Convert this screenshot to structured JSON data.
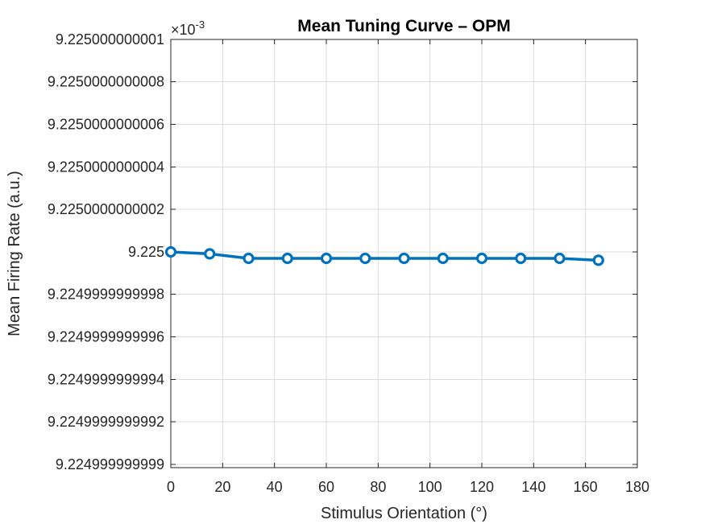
{
  "chart_data": {
    "type": "line",
    "title": "Mean Tuning Curve – OPM",
    "xlabel": "Stimulus Orientation (°)",
    "ylabel": "Mean Firing Rate (a.u.)",
    "y_exponent_base": "×10",
    "y_exponent_power": "-3",
    "xlim": [
      0,
      180
    ],
    "ylim": [
      9.2249999999989,
      9.225000000001
    ],
    "grid": true,
    "x_ticks": [
      {
        "value": 0,
        "label": "0"
      },
      {
        "value": 20,
        "label": "20"
      },
      {
        "value": 40,
        "label": "40"
      },
      {
        "value": 60,
        "label": "60"
      },
      {
        "value": 80,
        "label": "80"
      },
      {
        "value": 100,
        "label": "100"
      },
      {
        "value": 120,
        "label": "120"
      },
      {
        "value": 140,
        "label": "140"
      },
      {
        "value": 160,
        "label": "160"
      },
      {
        "value": 180,
        "label": "180"
      }
    ],
    "y_ticks": [
      {
        "value": 9.225000000001,
        "label": "9.225000000001"
      },
      {
        "value": 9.2250000000008,
        "label": "9.2250000000008"
      },
      {
        "value": 9.2250000000006,
        "label": "9.2250000000006"
      },
      {
        "value": 9.2250000000004,
        "label": "9.2250000000004"
      },
      {
        "value": 9.2250000000002,
        "label": "9.2250000000002"
      },
      {
        "value": 9.225,
        "label": "9.225"
      },
      {
        "value": 9.2249999999998,
        "label": "9.2249999999998"
      },
      {
        "value": 9.2249999999996,
        "label": "9.2249999999996"
      },
      {
        "value": 9.2249999999994,
        "label": "9.2249999999994"
      },
      {
        "value": 9.2249999999992,
        "label": "9.2249999999992"
      },
      {
        "value": 9.224999999999,
        "label": "9.224999999999"
      }
    ],
    "series": [
      {
        "color": "#0072bd",
        "marker": "circle",
        "x": [
          0,
          15,
          30,
          45,
          60,
          75,
          90,
          105,
          120,
          135,
          150,
          165
        ],
        "y": [
          9.225,
          9.22499999999999,
          9.22499999999997,
          9.22499999999997,
          9.22499999999997,
          9.22499999999997,
          9.22499999999997,
          9.22499999999997,
          9.22499999999997,
          9.22499999999997,
          9.22499999999997,
          9.22499999999996
        ]
      }
    ]
  }
}
